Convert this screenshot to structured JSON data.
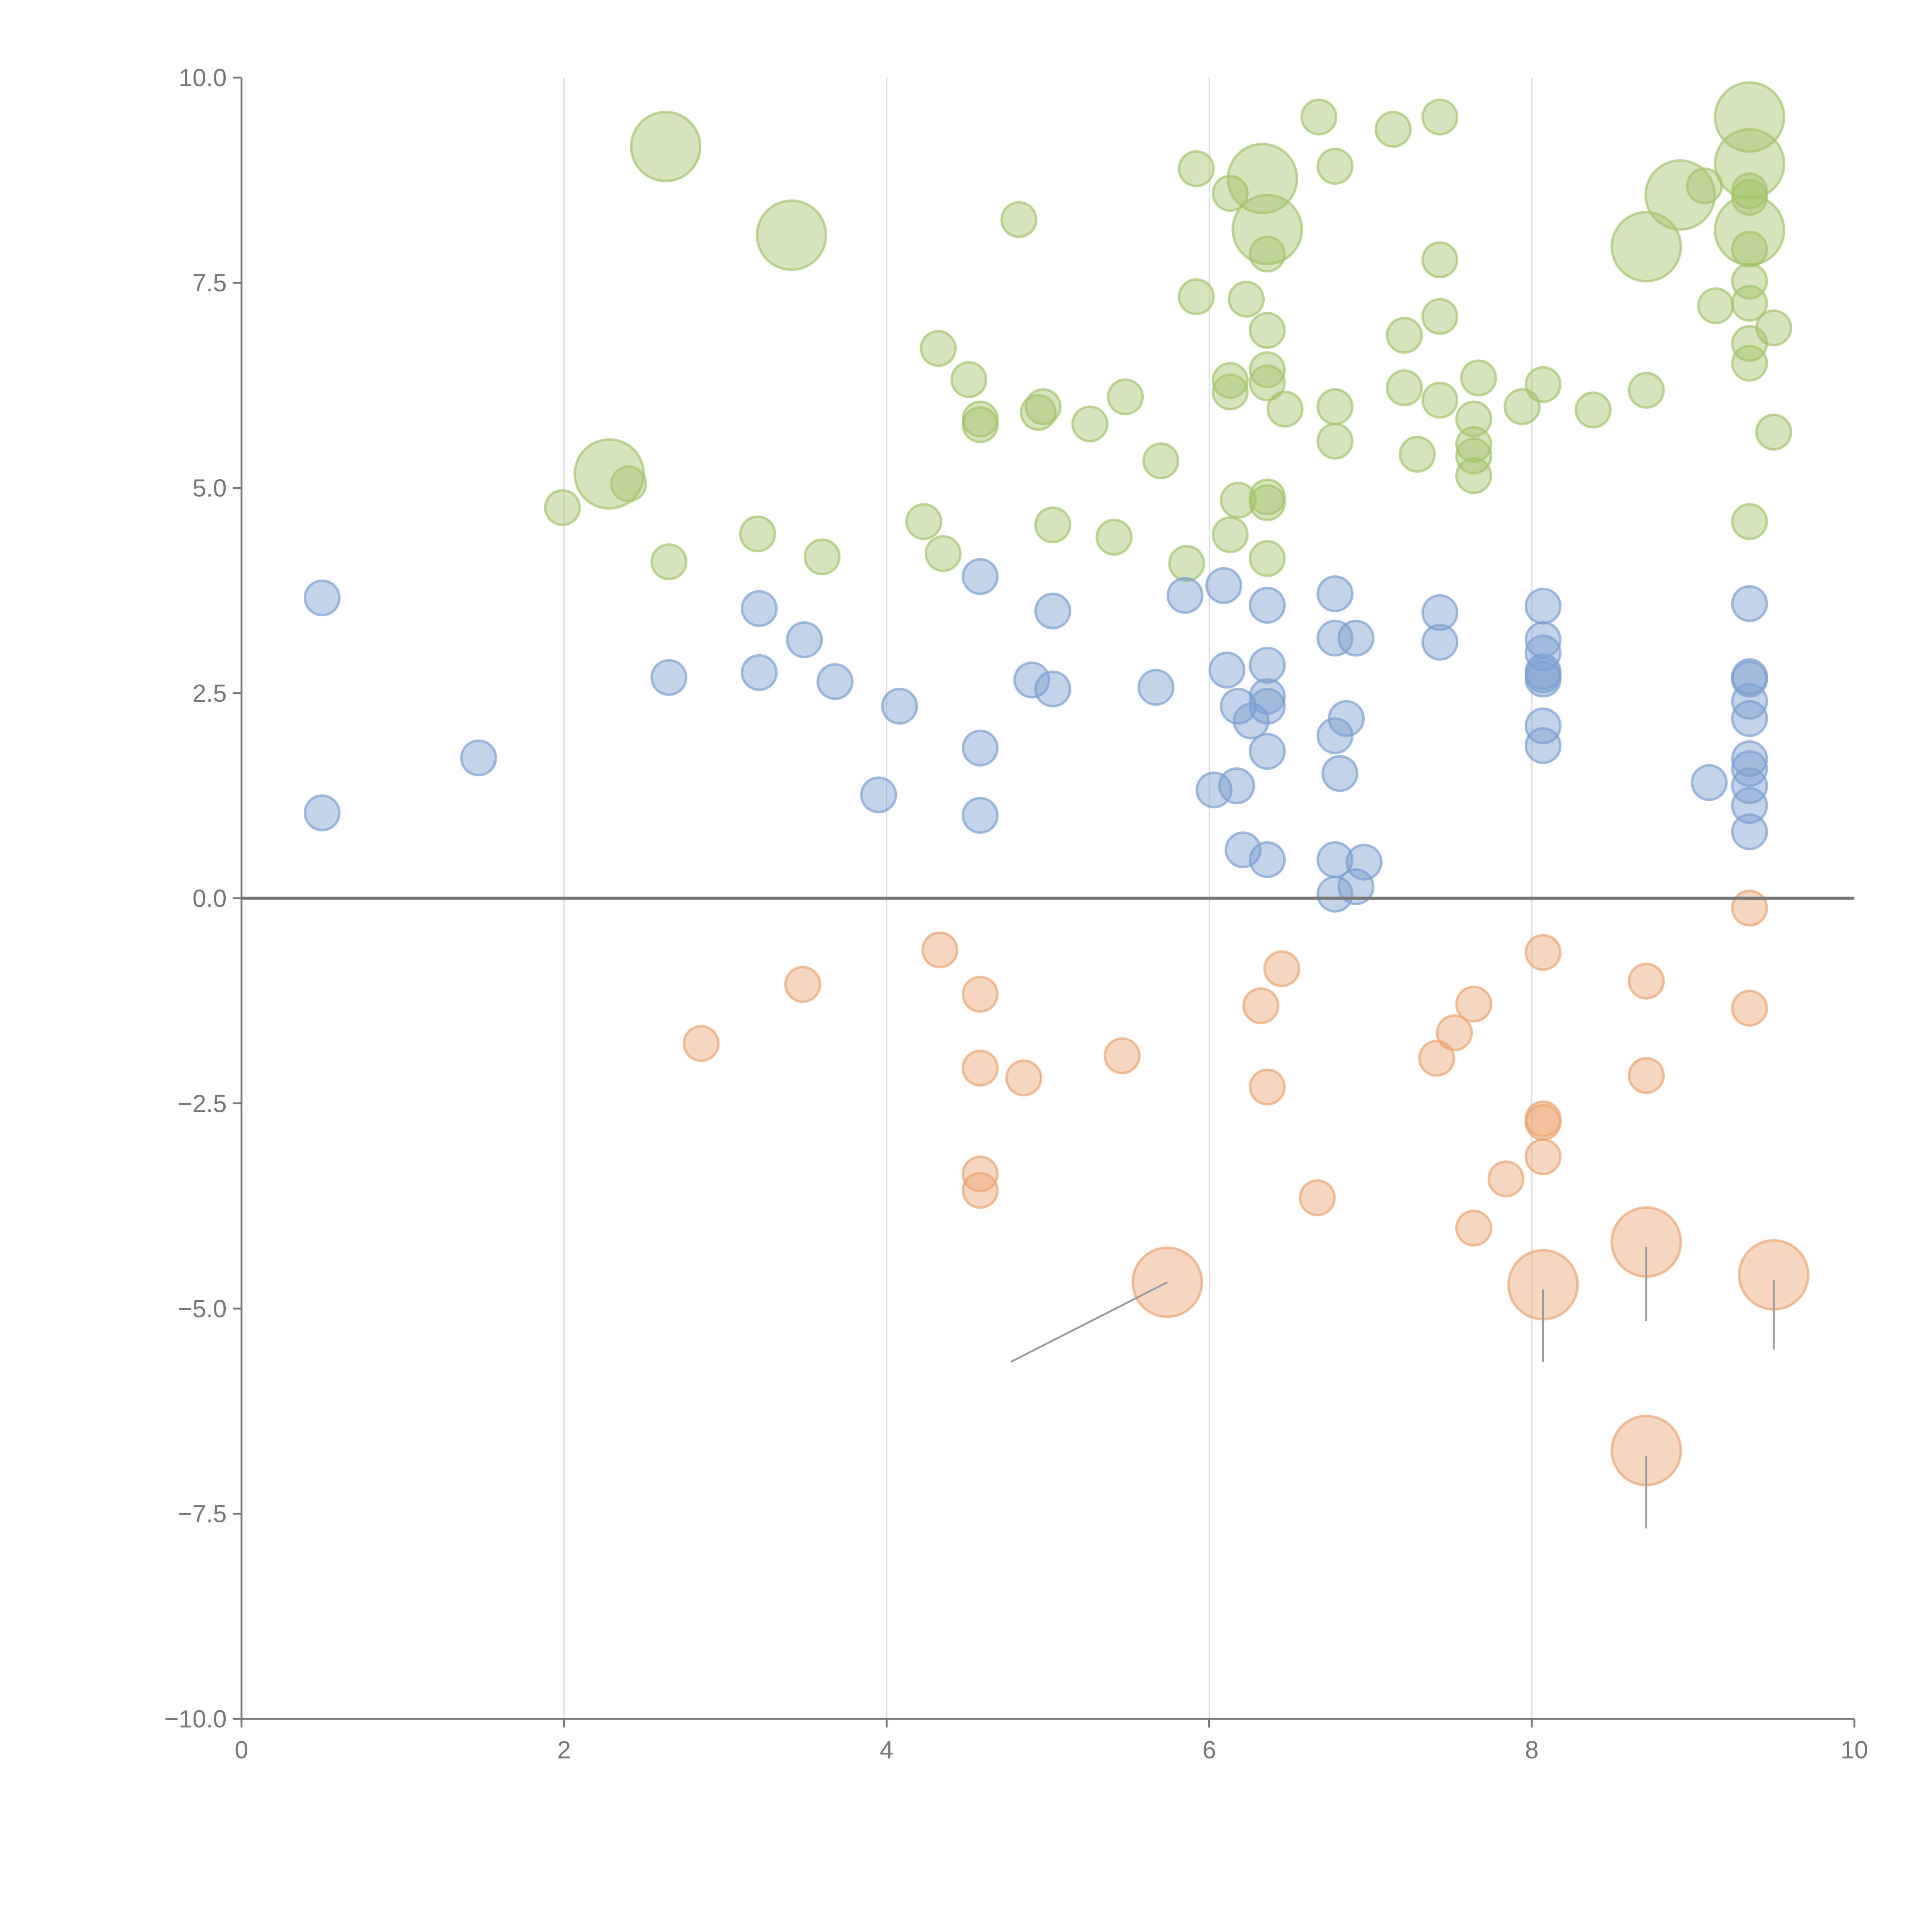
{
  "chart_data": {
    "type": "scatter",
    "title": "",
    "xlabel": "",
    "ylabel": "",
    "xlim": [
      0,
      10
    ],
    "ylim": [
      -10,
      10
    ],
    "grid": "vertical",
    "xticks": [
      "0",
      "2",
      "4",
      "6",
      "8",
      "10"
    ],
    "yticks": [
      "10.0",
      "7.5",
      "5.0",
      "2.5",
      "0.0",
      "−2.5",
      "−5.0",
      "−7.5",
      "−10.0"
    ],
    "series": [
      {
        "name": "green",
        "color": "#a3c46a",
        "points": [
          [
            6.68,
            9.52,
            1
          ],
          [
            7.14,
            9.37,
            1
          ],
          [
            7.43,
            9.52,
            1
          ],
          [
            5.92,
            8.89,
            1
          ],
          [
            6.78,
            8.92,
            1
          ],
          [
            4.82,
            8.27,
            1
          ],
          [
            6.13,
            8.59,
            1
          ],
          [
            9.07,
            8.68,
            1
          ],
          [
            9.35,
            8.62,
            1
          ],
          [
            9.35,
            8.54,
            1
          ],
          [
            6.36,
            7.85,
            1
          ],
          [
            7.43,
            7.78,
            1
          ],
          [
            9.35,
            7.91,
            1
          ],
          [
            9.35,
            7.52,
            1
          ],
          [
            5.92,
            7.33,
            1
          ],
          [
            6.23,
            7.3,
            1
          ],
          [
            9.14,
            7.22,
            1
          ],
          [
            9.35,
            7.25,
            1
          ],
          [
            7.43,
            7.09,
            1
          ],
          [
            6.36,
            6.92,
            1
          ],
          [
            9.5,
            6.95,
            1
          ],
          [
            7.21,
            6.86,
            1
          ],
          [
            9.35,
            6.76,
            1
          ],
          [
            4.32,
            6.7,
            1
          ],
          [
            9.35,
            6.52,
            1
          ],
          [
            4.51,
            6.32,
            1
          ],
          [
            6.13,
            6.31,
            1
          ],
          [
            6.36,
            6.44,
            1
          ],
          [
            7.67,
            6.34,
            1
          ],
          [
            8.07,
            6.26,
            1
          ],
          [
            8.71,
            6.19,
            1
          ],
          [
            5.48,
            6.11,
            1
          ],
          [
            6.13,
            6.17,
            1
          ],
          [
            7.21,
            6.22,
            1
          ],
          [
            6.36,
            6.28,
            1
          ],
          [
            7.43,
            6.07,
            1
          ],
          [
            4.97,
            5.99,
            1
          ],
          [
            4.94,
            5.92,
            1
          ],
          [
            6.47,
            5.96,
            1
          ],
          [
            6.78,
            5.99,
            1
          ],
          [
            7.94,
            5.99,
            1
          ],
          [
            8.38,
            5.95,
            1
          ],
          [
            4.58,
            5.84,
            1
          ],
          [
            4.58,
            5.77,
            1
          ],
          [
            5.26,
            5.78,
            1
          ],
          [
            7.64,
            5.84,
            1
          ],
          [
            7.64,
            5.53,
            1
          ],
          [
            7.64,
            5.39,
            1
          ],
          [
            6.78,
            5.57,
            1
          ],
          [
            9.5,
            5.68,
            1
          ],
          [
            7.29,
            5.41,
            1
          ],
          [
            5.7,
            5.33,
            1
          ],
          [
            7.64,
            5.15,
            1
          ],
          [
            2.4,
            5.05,
            1
          ],
          [
            6.18,
            4.85,
            1
          ],
          [
            6.36,
            4.89,
            1
          ],
          [
            6.36,
            4.82,
            1
          ],
          [
            1.99,
            4.76,
            1
          ],
          [
            4.23,
            4.59,
            1
          ],
          [
            9.35,
            4.59,
            1
          ],
          [
            5.03,
            4.55,
            1
          ],
          [
            3.2,
            4.44,
            1
          ],
          [
            6.13,
            4.43,
            1
          ],
          [
            5.41,
            4.4,
            1
          ],
          [
            4.35,
            4.2,
            1
          ],
          [
            3.6,
            4.16,
            1
          ],
          [
            6.36,
            4.14,
            1
          ],
          [
            2.65,
            4.1,
            1
          ],
          [
            5.86,
            4.08,
            1
          ],
          [
            2.63,
            9.16,
            2
          ],
          [
            9.35,
            9.52,
            2
          ],
          [
            9.35,
            8.95,
            2
          ],
          [
            8.92,
            8.57,
            2
          ],
          [
            6.33,
            8.77,
            2
          ],
          [
            3.41,
            8.08,
            2
          ],
          [
            6.36,
            8.15,
            2
          ],
          [
            9.35,
            8.14,
            2
          ],
          [
            8.71,
            7.94,
            2
          ],
          [
            2.28,
            5.17,
            2
          ]
        ]
      },
      {
        "name": "blue",
        "color": "#7b9fd1",
        "points": [
          [
            0.5,
            3.66,
            1
          ],
          [
            0.5,
            1.04,
            1
          ],
          [
            1.47,
            1.71,
            1
          ],
          [
            2.65,
            2.69,
            1
          ],
          [
            3.21,
            3.53,
            1
          ],
          [
            3.21,
            2.75,
            1
          ],
          [
            3.49,
            3.15,
            1
          ],
          [
            3.68,
            2.64,
            1
          ],
          [
            4.08,
            2.34,
            1
          ],
          [
            3.95,
            1.26,
            1
          ],
          [
            4.58,
            3.92,
            1
          ],
          [
            4.58,
            1.83,
            1
          ],
          [
            4.58,
            1.01,
            1
          ],
          [
            5.03,
            3.5,
            1
          ],
          [
            4.9,
            2.66,
            1
          ],
          [
            5.03,
            2.55,
            1
          ],
          [
            5.67,
            2.57,
            1
          ],
          [
            5.85,
            3.69,
            1
          ],
          [
            6.09,
            3.81,
            1
          ],
          [
            6.11,
            2.78,
            1
          ],
          [
            6.18,
            2.34,
            1
          ],
          [
            6.26,
            2.16,
            1
          ],
          [
            6.36,
            3.57,
            1
          ],
          [
            6.36,
            2.84,
            1
          ],
          [
            6.36,
            2.46,
            1
          ],
          [
            6.36,
            2.34,
            1
          ],
          [
            6.36,
            1.79,
            1
          ],
          [
            6.03,
            1.32,
            1
          ],
          [
            6.17,
            1.37,
            1
          ],
          [
            6.21,
            0.59,
            1
          ],
          [
            6.36,
            0.47,
            1
          ],
          [
            6.78,
            3.71,
            1
          ],
          [
            6.78,
            3.17,
            1
          ],
          [
            6.91,
            3.17,
            1
          ],
          [
            6.85,
            2.19,
            1
          ],
          [
            6.78,
            1.98,
            1
          ],
          [
            6.81,
            1.52,
            1
          ],
          [
            6.78,
            0.47,
            1
          ],
          [
            6.96,
            0.44,
            1
          ],
          [
            6.91,
            0.14,
            1
          ],
          [
            6.78,
            0.05,
            1
          ],
          [
            7.43,
            3.48,
            1
          ],
          [
            7.43,
            3.12,
            1
          ],
          [
            8.07,
            3.56,
            1
          ],
          [
            8.07,
            3.15,
            1
          ],
          [
            8.07,
            2.99,
            1
          ],
          [
            8.07,
            2.76,
            1
          ],
          [
            8.07,
            2.72,
            1
          ],
          [
            8.07,
            2.67,
            1
          ],
          [
            8.07,
            2.1,
            1
          ],
          [
            8.07,
            1.86,
            1
          ],
          [
            9.35,
            3.59,
            1
          ],
          [
            9.35,
            2.7,
            1
          ],
          [
            9.35,
            2.67,
            1
          ],
          [
            9.35,
            2.4,
            1
          ],
          [
            9.35,
            2.19,
            1
          ],
          [
            9.35,
            1.7,
            1
          ],
          [
            9.35,
            1.58,
            1
          ],
          [
            9.35,
            1.37,
            1
          ],
          [
            9.35,
            1.13,
            1
          ],
          [
            9.35,
            0.81,
            1
          ],
          [
            9.1,
            1.41,
            1
          ]
        ]
      },
      {
        "name": "orange",
        "color": "#eba46e",
        "points": [
          [
            2.85,
            -1.77,
            1
          ],
          [
            3.48,
            -1.05,
            1
          ],
          [
            4.33,
            -0.63,
            1
          ],
          [
            4.58,
            -1.17,
            1
          ],
          [
            4.58,
            -2.07,
            1
          ],
          [
            4.85,
            -2.19,
            1
          ],
          [
            5.46,
            -1.92,
            1
          ],
          [
            4.58,
            -3.36,
            1
          ],
          [
            4.58,
            -3.56,
            1
          ],
          [
            6.45,
            -0.86,
            1
          ],
          [
            6.32,
            -1.31,
            1
          ],
          [
            6.36,
            -2.3,
            1
          ],
          [
            6.67,
            -3.65,
            1
          ],
          [
            7.41,
            -1.95,
            1
          ],
          [
            7.52,
            -1.64,
            1
          ],
          [
            7.64,
            -1.29,
            1
          ],
          [
            7.64,
            -4.02,
            1
          ],
          [
            7.84,
            -3.42,
            1
          ],
          [
            8.07,
            -0.66,
            1
          ],
          [
            8.07,
            -2.69,
            1
          ],
          [
            8.07,
            -2.73,
            1
          ],
          [
            8.07,
            -3.15,
            1
          ],
          [
            8.71,
            -1.01,
            1
          ],
          [
            8.71,
            -2.16,
            1
          ],
          [
            9.35,
            -0.12,
            1
          ],
          [
            9.35,
            -1.34,
            1
          ],
          [
            5.74,
            -4.68,
            2
          ],
          [
            8.07,
            -4.71,
            2
          ],
          [
            8.71,
            -4.19,
            2
          ],
          [
            9.5,
            -4.59,
            2
          ],
          [
            8.71,
            -6.73,
            2
          ]
        ]
      }
    ],
    "leaders": [
      [
        5.74,
        -4.68,
        4.77,
        -5.65
      ],
      [
        8.07,
        -4.77,
        8.07,
        -5.65
      ],
      [
        8.71,
        -4.25,
        8.71,
        -5.15
      ],
      [
        9.5,
        -4.65,
        9.5,
        -5.5
      ],
      [
        8.71,
        -6.8,
        8.71,
        -7.68
      ]
    ]
  }
}
